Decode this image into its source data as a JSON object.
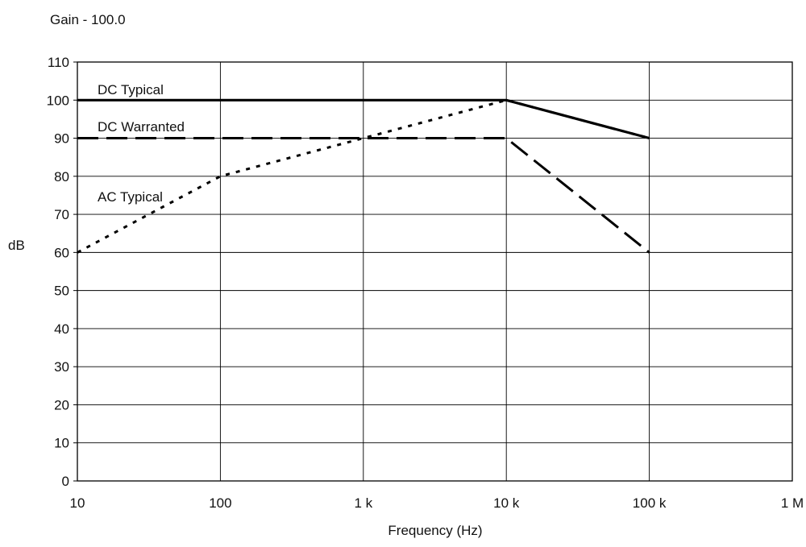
{
  "chart_data": {
    "type": "line",
    "subtitle": "Gain - 100.0",
    "xlabel": "Frequency (Hz)",
    "ylabel": "dB",
    "x_scale": "log",
    "xlim": [
      10,
      1000000
    ],
    "ylim": [
      0,
      110
    ],
    "x_ticks": [
      10,
      100,
      1000,
      10000,
      100000,
      1000000
    ],
    "x_tick_labels": [
      "10",
      "100",
      "1 k",
      "10 k",
      "100 k",
      "1 M"
    ],
    "y_ticks": [
      0,
      10,
      20,
      30,
      40,
      50,
      60,
      70,
      80,
      90,
      100,
      110
    ],
    "y_tick_labels": [
      "0",
      "10",
      "20",
      "30",
      "40",
      "50",
      "60",
      "70",
      "80",
      "90",
      "100",
      "110"
    ],
    "grid": true,
    "legend": "none",
    "series": [
      {
        "name": "DC Typical",
        "line_style": "solid",
        "color": "#000000",
        "points": [
          [
            10,
            100
          ],
          [
            10000,
            100
          ],
          [
            100000,
            90
          ]
        ]
      },
      {
        "name": "DC Warranted",
        "line_style": "dashed",
        "color": "#000000",
        "points": [
          [
            10,
            90
          ],
          [
            10000,
            90
          ],
          [
            100000,
            60
          ]
        ]
      },
      {
        "name": "AC Typical",
        "line_style": "dotted",
        "color": "#000000",
        "points": [
          [
            10,
            60
          ],
          [
            100,
            80
          ],
          [
            1000,
            90
          ],
          [
            10000,
            100
          ],
          [
            100000,
            90
          ]
        ]
      }
    ]
  }
}
